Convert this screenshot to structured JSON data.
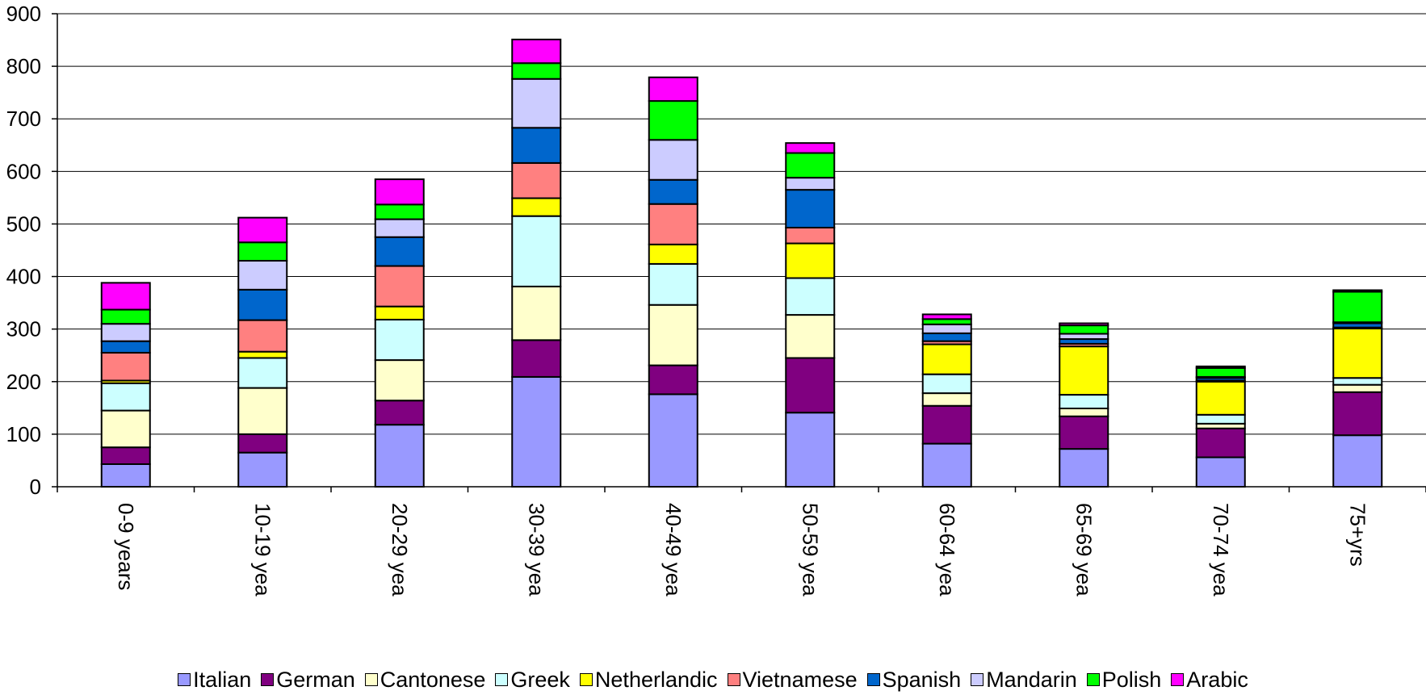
{
  "chart_data": {
    "type": "bar",
    "stacked": true,
    "categories": [
      "0-9 years",
      "10-19 yea",
      "20-29 yea",
      "30-39 yea",
      "40-49 yea",
      "50-59 yea",
      "60-64 yea",
      "65-69 yea",
      "70-74 yea",
      "75+yrs"
    ],
    "ylim": [
      0,
      900
    ],
    "yticks": [
      0,
      100,
      200,
      300,
      400,
      500,
      600,
      700,
      800,
      900
    ],
    "grid": true,
    "legend_position": "bottom",
    "series": [
      {
        "name": "Italian",
        "color": "#9999FF",
        "values": [
          43,
          65,
          118,
          209,
          176,
          141,
          82,
          72,
          56,
          98
        ]
      },
      {
        "name": "German",
        "color": "#800080",
        "values": [
          32,
          35,
          46,
          70,
          55,
          104,
          72,
          62,
          55,
          82
        ]
      },
      {
        "name": "Cantonese",
        "color": "#FFFFCC",
        "values": [
          70,
          88,
          77,
          102,
          115,
          82,
          24,
          15,
          9,
          14
        ]
      },
      {
        "name": "Greek",
        "color": "#CCFFFF",
        "values": [
          52,
          57,
          77,
          134,
          78,
          70,
          36,
          26,
          17,
          13
        ]
      },
      {
        "name": "Netherlandic",
        "color": "#FFFF00",
        "values": [
          5,
          12,
          25,
          34,
          37,
          66,
          57,
          92,
          63,
          94
        ]
      },
      {
        "name": "Vietnamese",
        "color": "#FF8080",
        "values": [
          53,
          60,
          77,
          67,
          77,
          30,
          6,
          5,
          2,
          2
        ]
      },
      {
        "name": "Spanish",
        "color": "#0066CC",
        "values": [
          22,
          58,
          55,
          67,
          46,
          72,
          15,
          9,
          5,
          8
        ]
      },
      {
        "name": "Mandarin",
        "color": "#CCCCFF",
        "values": [
          33,
          55,
          34,
          93,
          76,
          23,
          17,
          10,
          2,
          2
        ]
      },
      {
        "name": "Polish",
        "color": "#00FF00",
        "values": [
          27,
          35,
          28,
          30,
          74,
          47,
          10,
          16,
          17,
          58
        ]
      },
      {
        "name": "Arabic",
        "color": "#FF00FF",
        "values": [
          51,
          47,
          48,
          45,
          45,
          19,
          9,
          4,
          3,
          3
        ]
      }
    ]
  }
}
